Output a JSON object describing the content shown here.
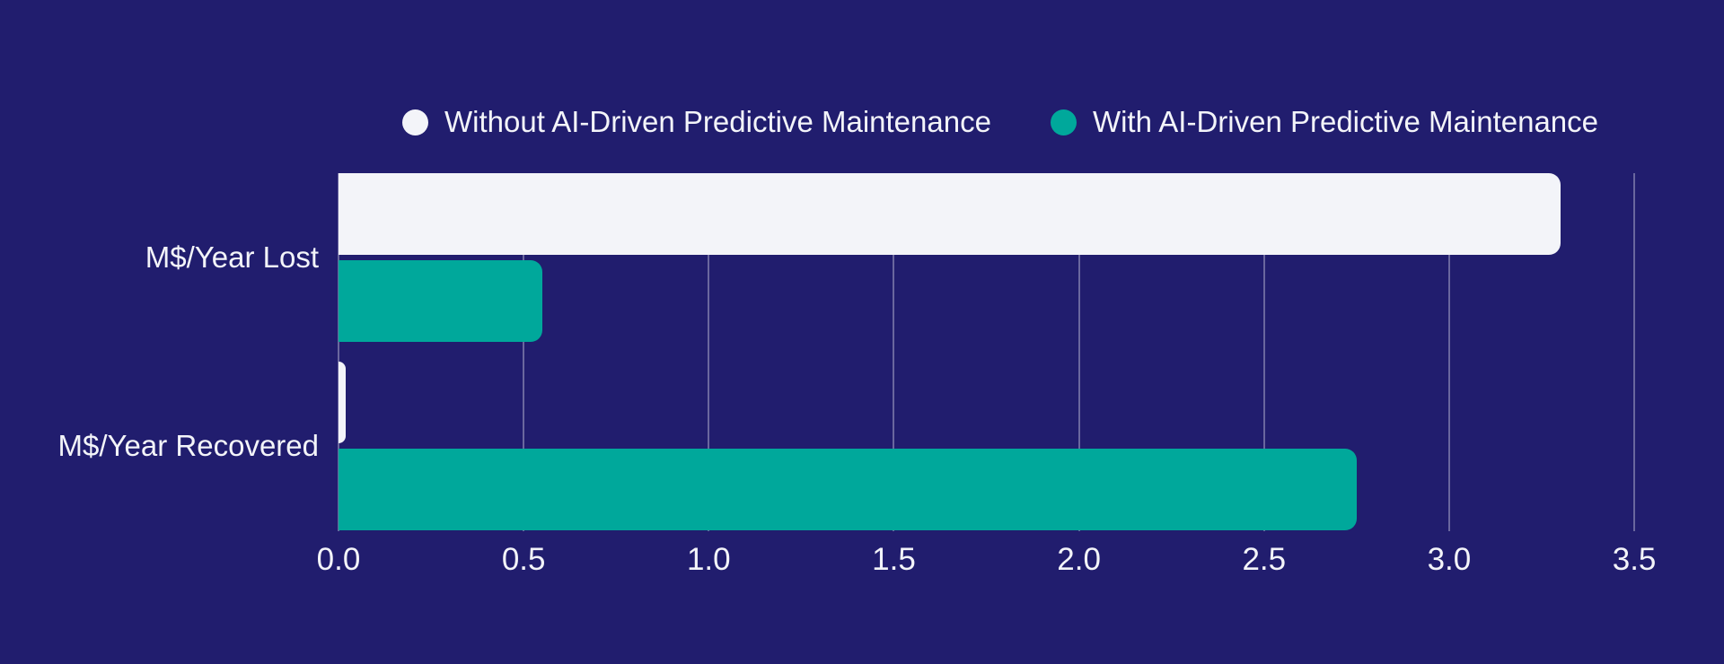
{
  "colors": {
    "background": "#211D6E",
    "text": "#F3F4F9",
    "gridline": "rgba(243,244,249,0.35)",
    "series_without": "#F3F4F9",
    "series_with": "#00A89B"
  },
  "legend": {
    "items": [
      {
        "label": "Without AI-Driven Predictive Maintenance",
        "color": "#F3F4F9"
      },
      {
        "label": "With AI-Driven Predictive Maintenance",
        "color": "#00A89B"
      }
    ]
  },
  "chart_data": {
    "type": "bar",
    "orientation": "horizontal",
    "title": "",
    "xlabel": "",
    "ylabel": "",
    "categories": [
      "M$/Year Lost",
      "M$/Year Recovered"
    ],
    "series": [
      {
        "name": "Without AI-Driven Predictive Maintenance",
        "color": "#F3F4F9",
        "values": [
          3.3,
          0.02
        ]
      },
      {
        "name": "With AI-Driven Predictive Maintenance",
        "color": "#00A89B",
        "values": [
          0.55,
          2.75
        ]
      }
    ],
    "xlim": [
      0,
      3.575
    ],
    "xticks": [
      "0.0",
      "0.5",
      "1.0",
      "1.5",
      "2.0",
      "2.5",
      "3.0",
      "3.5"
    ],
    "grid": true,
    "legend_position": "top"
  }
}
